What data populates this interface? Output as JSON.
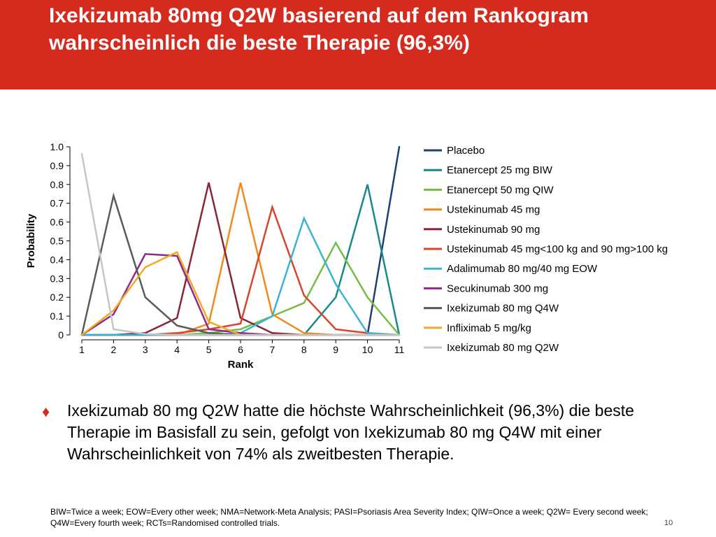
{
  "slide": {
    "title": "Ixekizumab 80mg Q2W basierend auf dem Rankogram wahrscheinlich die beste Therapie (96,3%)",
    "bullet_icon": "diamond-icon",
    "bullet_text": "Ixekizumab 80 mg Q2W hatte die höchste Wahrscheinlichkeit (96,3%) die beste Therapie im Basisfall zu sein, gefolgt von Ixekizumab 80 mg Q4W mit einer Wahrscheinlichkeit von 74% als zweitbesten Therapie.",
    "footnote": "BIW=Twice a week; EOW=Every other week; NMA=Network-Meta Analysis; PASI=Psoriasis Area Severity Index; QIW=Once a week; Q2W= Every second week; Q4W=Every fourth week; RCTs=Randomised controlled trials.",
    "page_number": "10",
    "accent_color": "#d52b1e"
  },
  "chart_data": {
    "type": "line",
    "title": "",
    "xlabel": "Rank",
    "ylabel": "Probability",
    "x": [
      1,
      2,
      3,
      4,
      5,
      6,
      7,
      8,
      9,
      10,
      11
    ],
    "xlim": [
      1,
      11
    ],
    "ylim": [
      0,
      1.0
    ],
    "y_ticks": [
      "0",
      "0.1",
      "0.2",
      "0.3",
      "0.4",
      "0.5",
      "0.6",
      "0.7",
      "0.8",
      "0.9",
      "1.0"
    ],
    "grid": false,
    "legend_position": "right",
    "series": [
      {
        "name": "Placebo",
        "color": "#1f3f75",
        "values": [
          0,
          0,
          0,
          0,
          0,
          0,
          0,
          0,
          0,
          0,
          1.0
        ]
      },
      {
        "name": "Etanercept 25 mg BIW",
        "color": "#17898a",
        "values": [
          0,
          0,
          0,
          0,
          0,
          0,
          0,
          0,
          0.2,
          0.8,
          0
        ]
      },
      {
        "name": "Etanercept 50 mg QIW",
        "color": "#72be44",
        "values": [
          0,
          0,
          0,
          0,
          0.01,
          0.03,
          0.1,
          0.17,
          0.49,
          0.2,
          0
        ]
      },
      {
        "name": "Ustekinumab 45 mg",
        "color": "#ef8a1e",
        "values": [
          0,
          0,
          0,
          0,
          0.06,
          0.81,
          0.11,
          0.01,
          0,
          0,
          0
        ]
      },
      {
        "name": "Ustekinumab 90 mg",
        "color": "#8b2436",
        "values": [
          0,
          0,
          0.01,
          0.09,
          0.81,
          0.09,
          0.01,
          0,
          0,
          0,
          0
        ]
      },
      {
        "name": "Ustekinumab 45 mg<100 kg and 90 mg>100 kg",
        "color": "#d8452b",
        "values": [
          0,
          0,
          0,
          0.01,
          0.03,
          0.06,
          0.68,
          0.21,
          0.03,
          0.01,
          0
        ]
      },
      {
        "name": "Adalimumab 80 mg/40 mg EOW",
        "color": "#3ab4d4",
        "values": [
          0,
          0,
          0,
          0,
          0,
          0.01,
          0.1,
          0.62,
          0.27,
          0.01,
          0
        ]
      },
      {
        "name": "Secukinumab 300 mg",
        "color": "#8e2a8e",
        "values": [
          0,
          0.11,
          0.43,
          0.42,
          0.03,
          0.01,
          0,
          0,
          0,
          0,
          0
        ]
      },
      {
        "name": "Ixekizumab 80 mg Q4W",
        "color": "#5a5a5a",
        "values": [
          0,
          0.74,
          0.2,
          0.05,
          0.01,
          0,
          0,
          0,
          0,
          0,
          0
        ]
      },
      {
        "name": "Infliximab 5 mg/kg",
        "color": "#f3a923",
        "values": [
          0,
          0.13,
          0.36,
          0.44,
          0.07,
          0,
          0,
          0,
          0,
          0,
          0
        ]
      },
      {
        "name": "Ixekizumab 80 mg Q2W",
        "color": "#c6c6c6",
        "values": [
          0.963,
          0.03,
          0.005,
          0,
          0,
          0,
          0,
          0,
          0,
          0,
          0
        ]
      }
    ]
  }
}
